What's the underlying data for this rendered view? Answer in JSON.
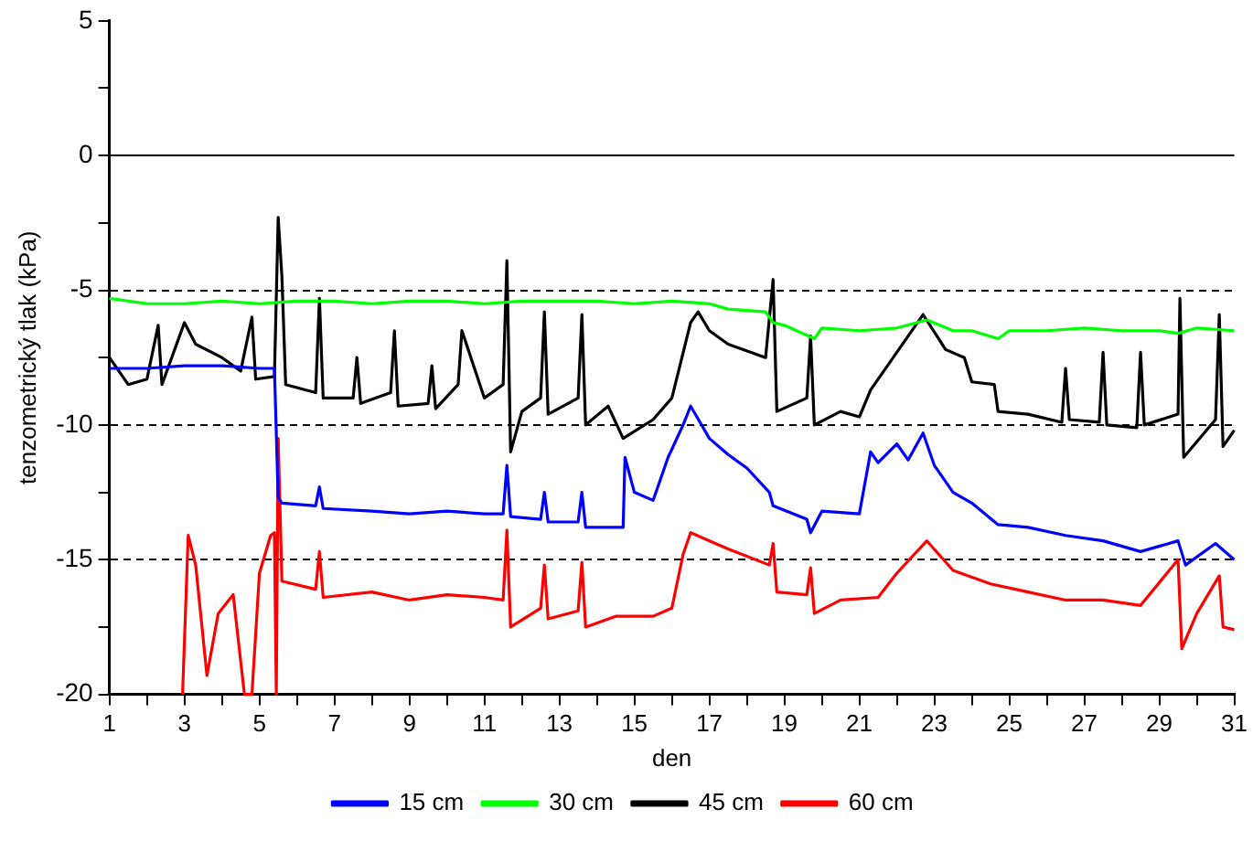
{
  "chart_data": {
    "type": "line",
    "xlabel": "den",
    "ylabel": "tenzometrický tlak (kPa)",
    "xlim": [
      1,
      31
    ],
    "ylim": [
      -20,
      5
    ],
    "xticks": [
      1,
      {
        "value": 2,
        "label": null
      },
      3,
      {
        "value": 4,
        "label": null
      },
      5,
      {
        "value": 6,
        "label": null
      },
      7,
      {
        "value": 8,
        "label": null
      },
      9,
      {
        "value": 10,
        "label": null
      },
      11,
      {
        "value": 12,
        "label": null
      },
      13,
      {
        "value": 14,
        "label": null
      },
      15,
      {
        "value": 16,
        "label": null
      },
      17,
      {
        "value": 18,
        "label": null
      },
      19,
      {
        "value": 20,
        "label": null
      },
      21,
      {
        "value": 22,
        "label": null
      },
      23,
      {
        "value": 24,
        "label": null
      },
      25,
      {
        "value": 26,
        "label": null
      },
      27,
      {
        "value": 28,
        "label": null
      },
      29,
      {
        "value": 30,
        "label": null
      },
      31
    ],
    "yticks": [
      -20,
      {
        "value": -17.5,
        "label": null
      },
      -15,
      {
        "value": -12.5,
        "label": null
      },
      -10,
      {
        "value": -7.5,
        "label": null
      },
      -5,
      {
        "value": -2.5,
        "label": null
      },
      0,
      {
        "value": 2.5,
        "label": null
      },
      5
    ],
    "grid": "y",
    "legend": "bottom",
    "marker": "none",
    "line_style": "solid",
    "series": [
      {
        "name": "15 cm",
        "color": "#0000ff",
        "x": [
          1,
          2,
          3,
          4,
          5,
          5.4,
          5.5,
          5.6,
          6.5,
          6.6,
          6.7,
          8,
          9,
          10,
          11,
          11.5,
          11.6,
          11.7,
          12.5,
          12.6,
          12.7,
          13.5,
          13.6,
          13.7,
          14.7,
          14.75,
          15,
          15.5,
          15.9,
          16.3,
          16.5,
          17,
          17.5,
          18,
          18.6,
          18.7,
          19.6,
          19.7,
          20,
          21,
          21.3,
          21.5,
          22,
          22.3,
          22.7,
          23,
          23.5,
          24,
          24.7,
          25.5,
          26.5,
          27.5,
          28.5,
          29.5,
          29.7,
          30.5,
          31
        ],
        "values": [
          -7.9,
          -7.9,
          -7.8,
          -7.8,
          -7.9,
          -7.9,
          -12.7,
          -12.9,
          -13.0,
          -12.3,
          -13.1,
          -13.2,
          -13.3,
          -13.2,
          -13.3,
          -13.3,
          -11.5,
          -13.4,
          -13.5,
          -12.5,
          -13.6,
          -13.6,
          -12.5,
          -13.8,
          -13.8,
          -11.2,
          -12.5,
          -12.8,
          -11.2,
          -10.0,
          -9.3,
          -10.5,
          -11.1,
          -11.6,
          -12.5,
          -13.0,
          -13.5,
          -14.0,
          -13.2,
          -13.3,
          -11.0,
          -11.4,
          -10.7,
          -11.3,
          -10.3,
          -11.5,
          -12.5,
          -12.9,
          -13.7,
          -13.8,
          -14.1,
          -14.3,
          -14.7,
          -14.3,
          -15.2,
          -14.4,
          -15.0
        ]
      },
      {
        "name": "30 cm",
        "color": "#00ff00",
        "x": [
          1,
          2,
          3,
          4,
          5,
          6,
          7,
          8,
          9,
          10,
          11,
          12,
          13,
          14,
          15,
          16,
          17,
          17.5,
          18.5,
          18.7,
          19,
          19.8,
          20,
          21,
          22,
          22.8,
          23.5,
          24,
          24.7,
          25,
          26,
          27,
          28,
          29,
          29.5,
          30,
          31
        ],
        "values": [
          -5.3,
          -5.5,
          -5.5,
          -5.4,
          -5.5,
          -5.4,
          -5.4,
          -5.5,
          -5.4,
          -5.4,
          -5.5,
          -5.4,
          -5.4,
          -5.4,
          -5.5,
          -5.4,
          -5.5,
          -5.7,
          -5.8,
          -6.2,
          -6.3,
          -6.8,
          -6.4,
          -6.5,
          -6.4,
          -6.1,
          -6.5,
          -6.5,
          -6.8,
          -6.5,
          -6.5,
          -6.4,
          -6.5,
          -6.5,
          -6.6,
          -6.4,
          -6.5
        ]
      },
      {
        "name": "45 cm",
        "color": "#000000",
        "x": [
          1,
          1.5,
          2,
          2.3,
          2.4,
          3,
          3.3,
          4,
          4.5,
          4.8,
          4.9,
          5.4,
          5.5,
          5.6,
          5.7,
          6.5,
          6.6,
          6.7,
          7.5,
          7.6,
          7.7,
          8.5,
          8.6,
          8.7,
          9.5,
          9.6,
          9.7,
          10.3,
          10.4,
          11,
          11.5,
          11.6,
          11.7,
          12,
          12.5,
          12.6,
          12.7,
          13.5,
          13.6,
          13.7,
          14.3,
          14.7,
          15.5,
          16,
          16.5,
          16.7,
          17,
          17.5,
          18.5,
          18.7,
          18.8,
          19.6,
          19.7,
          19.8,
          20.5,
          21,
          21.3,
          22,
          22.7,
          23.3,
          23.8,
          24,
          24.6,
          24.7,
          25.5,
          26.4,
          26.5,
          26.6,
          27.4,
          27.5,
          27.6,
          28.4,
          28.5,
          28.6,
          29.5,
          29.55,
          29.65,
          30.5,
          30.6,
          30.7,
          31
        ],
        "values": [
          -7.5,
          -8.5,
          -8.3,
          -6.3,
          -8.5,
          -6.2,
          -7.0,
          -7.5,
          -8.0,
          -6.0,
          -8.3,
          -8.2,
          -2.3,
          -4.5,
          -8.5,
          -8.8,
          -5.3,
          -9.0,
          -9.0,
          -7.5,
          -9.2,
          -8.8,
          -6.5,
          -9.3,
          -9.2,
          -7.8,
          -9.4,
          -8.5,
          -6.5,
          -9.0,
          -8.5,
          -3.9,
          -11.0,
          -9.5,
          -9.0,
          -5.8,
          -9.6,
          -9.0,
          -5.9,
          -10.0,
          -9.3,
          -10.5,
          -9.8,
          -9.0,
          -6.2,
          -5.8,
          -6.5,
          -7.0,
          -7.5,
          -4.6,
          -9.5,
          -9.0,
          -6.7,
          -10.0,
          -9.5,
          -9.7,
          -8.7,
          -7.3,
          -5.9,
          -7.2,
          -7.5,
          -8.4,
          -8.5,
          -9.5,
          -9.6,
          -9.9,
          -7.9,
          -9.8,
          -9.9,
          -7.3,
          -10.0,
          -10.1,
          -7.3,
          -10.0,
          -9.6,
          -5.3,
          -11.2,
          -9.8,
          -5.9,
          -10.8,
          -10.2
        ]
      },
      {
        "name": "60 cm",
        "color": "#ff0000",
        "x": [
          2.95,
          3.1,
          3.3,
          3.6,
          3.9,
          4.3,
          4.6,
          4.8,
          5.0,
          5.3,
          5.4,
          5.45,
          5.5,
          5.6,
          6.5,
          6.6,
          6.7,
          8,
          9,
          10,
          11,
          11.5,
          11.6,
          11.7,
          12.5,
          12.6,
          12.7,
          13.5,
          13.6,
          13.7,
          14.5,
          15.5,
          16.0,
          16.3,
          16.5,
          17.5,
          18.6,
          18.7,
          18.8,
          19.6,
          19.7,
          19.8,
          20.5,
          21.5,
          22.0,
          22.8,
          23.5,
          24.5,
          25.5,
          26.5,
          27.5,
          28.5,
          29.5,
          29.6,
          30.0,
          30.6,
          30.7,
          31
        ],
        "values": [
          -20,
          -14.1,
          -15.2,
          -19.3,
          -17.0,
          -16.3,
          -20,
          -20,
          -15.5,
          -14.1,
          -14.0,
          -20,
          -10.5,
          -15.8,
          -16.1,
          -14.7,
          -16.4,
          -16.2,
          -16.5,
          -16.3,
          -16.4,
          -16.5,
          -13.9,
          -17.5,
          -16.8,
          -15.2,
          -17.2,
          -16.9,
          -15.1,
          -17.5,
          -17.1,
          -17.1,
          -16.8,
          -14.8,
          -14.0,
          -14.6,
          -15.2,
          -14.4,
          -16.2,
          -16.3,
          -15.3,
          -17.0,
          -16.5,
          -16.4,
          -15.5,
          -14.3,
          -15.4,
          -15.9,
          -16.2,
          -16.5,
          -16.5,
          -16.7,
          -15.0,
          -18.3,
          -17.0,
          -15.6,
          -17.5,
          -17.6
        ]
      }
    ]
  }
}
